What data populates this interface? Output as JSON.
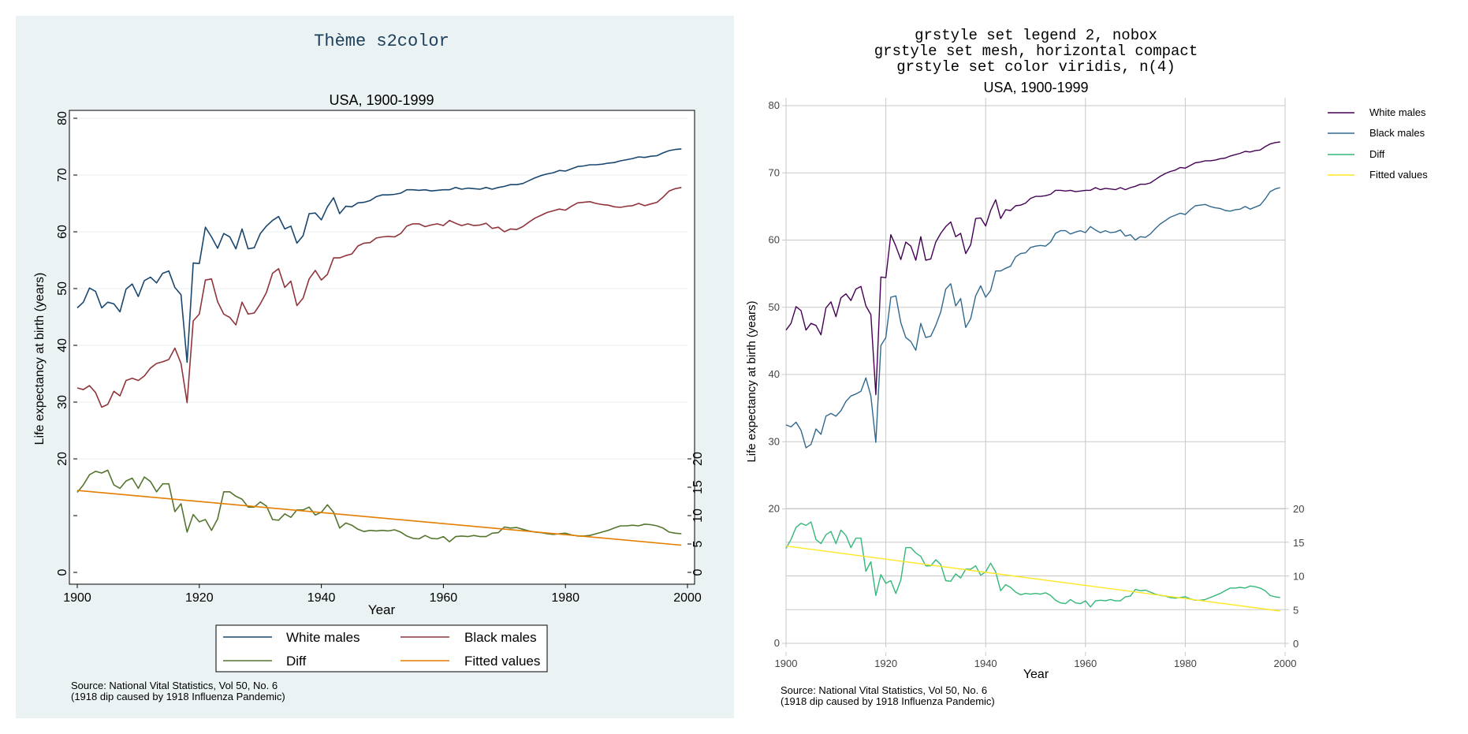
{
  "colors": {
    "s2_bg": "#eaf2f3",
    "s2_plot": "#ffffff",
    "s2_title": "#1e3f5a",
    "s2_white": "#1a476f",
    "s2_black": "#90353b",
    "s2_diff": "#55752f",
    "s2_fit": "#e37e00",
    "vir_white": "#440154",
    "vir_black": "#31688e",
    "vir_diff": "#35b779",
    "vir_fit": "#fde725",
    "grid": "#eaf2f3",
    "mesh": "#c8c8c8"
  },
  "left_panel": {
    "header": "Thème s2color",
    "legend": [
      "White males",
      "Black males",
      "Diff",
      "Fitted values"
    ],
    "source_line1": "Source: National Vital Statistics, Vol 50, No. 6",
    "source_line2": "(1918 dip caused by 1918 Influenza Pandemic)"
  },
  "right_panel": {
    "header_line1": "grstyle set legend 2, nobox",
    "header_line2": "grstyle set mesh, horizontal compact",
    "header_line3": "grstyle set color  viridis, n(4)",
    "legend": [
      "White males",
      "Black males",
      "Diff",
      "Fitted values"
    ],
    "source_line1": "Source: National Vital Statistics, Vol 50, No. 6",
    "source_line2": "(1918 dip caused by 1918 Influenza Pandemic)"
  },
  "chart_data": [
    {
      "type": "line",
      "title": "USA, 1900-1999",
      "xlabel": "Year",
      "ylabel": "Life expectancy at birth (years)",
      "xlim": [
        1900,
        2000
      ],
      "xticks": [
        1900,
        1920,
        1940,
        1960,
        1980,
        2000
      ],
      "ylim": [
        0,
        80
      ],
      "yticks_left": [
        0,
        10,
        20,
        30,
        40,
        50,
        60,
        70,
        80
      ],
      "ytick_labels_left": [
        "0",
        "",
        "20",
        "30",
        "40",
        "50",
        "60",
        "70",
        "80"
      ],
      "yticks_right": [
        0,
        5,
        10,
        15,
        20
      ],
      "legend_position": "bottom",
      "series": [
        {
          "name": "White males",
          "axis": "left",
          "values": [
            46.6,
            47.6,
            50.1,
            49.5,
            46.6,
            47.6,
            47.3,
            45.9,
            49.9,
            50.8,
            48.6,
            51.4,
            52.0,
            51.0,
            52.7,
            53.1,
            50.2,
            48.9,
            37.0,
            54.5,
            54.4,
            60.8,
            59.1,
            57.1,
            59.7,
            59.1,
            57.0,
            60.5,
            57.0,
            57.2,
            59.7,
            61.0,
            62.0,
            62.7,
            60.5,
            61.0,
            58.0,
            59.3,
            63.2,
            63.3,
            62.1,
            64.4,
            66.0,
            63.2,
            64.5,
            64.4,
            65.1,
            65.2,
            65.5,
            66.2,
            66.5,
            66.5,
            66.6,
            66.8,
            67.4,
            67.4,
            67.3,
            67.4,
            67.2,
            67.3,
            67.4,
            67.4,
            67.8,
            67.5,
            67.7,
            67.6,
            67.5,
            67.8,
            67.5,
            67.8,
            68.0,
            68.3,
            68.3,
            68.5,
            69.0,
            69.5,
            69.9,
            70.2,
            70.4,
            70.8,
            70.7,
            71.1,
            71.5,
            71.6,
            71.8,
            71.8,
            71.9,
            72.1,
            72.2,
            72.5,
            72.7,
            72.9,
            73.2,
            73.1,
            73.3,
            73.4,
            73.9,
            74.3,
            74.5,
            74.6
          ]
        },
        {
          "name": "Black males",
          "axis": "left",
          "values": [
            32.5,
            32.2,
            32.9,
            31.7,
            29.1,
            29.6,
            31.9,
            31.1,
            33.8,
            34.2,
            33.8,
            34.6,
            36.0,
            36.8,
            37.1,
            37.5,
            39.5,
            36.8,
            29.9,
            44.3,
            45.5,
            51.5,
            51.7,
            47.7,
            45.5,
            44.9,
            43.6,
            47.6,
            45.5,
            45.7,
            47.3,
            49.3,
            52.7,
            53.5,
            50.2,
            51.3,
            47.0,
            48.3,
            51.7,
            53.2,
            51.5,
            52.5,
            55.4,
            55.4,
            55.8,
            56.1,
            57.5,
            58.0,
            58.1,
            58.9,
            59.1,
            59.2,
            59.1,
            59.7,
            61.0,
            61.4,
            61.4,
            60.9,
            61.2,
            61.4,
            61.1,
            62.0,
            61.5,
            61.1,
            61.4,
            61.1,
            61.2,
            61.5,
            60.6,
            60.8,
            60.0,
            60.5,
            60.4,
            60.9,
            61.7,
            62.4,
            62.9,
            63.4,
            63.7,
            64.0,
            63.8,
            64.5,
            65.1,
            65.2,
            65.3,
            65.0,
            64.8,
            64.7,
            64.4,
            64.3,
            64.5,
            64.6,
            65.0,
            64.6,
            64.9,
            65.2,
            66.1,
            67.2,
            67.6,
            67.8
          ]
        },
        {
          "name": "Diff",
          "axis": "right",
          "values": [
            14.1,
            15.4,
            17.2,
            17.8,
            17.5,
            18.0,
            15.4,
            14.8,
            16.1,
            16.6,
            14.8,
            16.8,
            16.0,
            14.2,
            15.6,
            15.6,
            10.7,
            12.1,
            7.1,
            10.2,
            8.9,
            9.3,
            7.4,
            9.4,
            14.2,
            14.2,
            13.4,
            12.9,
            11.5,
            11.5,
            12.4,
            11.7,
            9.3,
            9.2,
            10.3,
            9.7,
            11.0,
            11.0,
            11.5,
            10.1,
            10.6,
            11.9,
            10.6,
            7.8,
            8.7,
            8.3,
            7.6,
            7.2,
            7.4,
            7.3,
            7.4,
            7.3,
            7.5,
            7.1,
            6.4,
            6.0,
            5.9,
            6.5,
            6.0,
            5.9,
            6.3,
            5.4,
            6.3,
            6.4,
            6.3,
            6.5,
            6.3,
            6.3,
            6.9,
            7.0,
            8.0,
            7.8,
            7.9,
            7.6,
            7.3,
            7.1,
            7.0,
            6.8,
            6.7,
            6.8,
            6.9,
            6.6,
            6.4,
            6.4,
            6.5,
            6.8,
            7.1,
            7.4,
            7.8,
            8.2,
            8.2,
            8.3,
            8.2,
            8.5,
            8.4,
            8.2,
            7.8,
            7.1,
            6.9,
            6.8
          ]
        },
        {
          "name": "Fitted values",
          "axis": "right",
          "values": [
            14.43,
            4.79
          ]
        }
      ]
    },
    {
      "type": "line",
      "title": "USA, 1900-1999",
      "xlabel": "Year",
      "ylabel": "Life expectancy at birth (years)",
      "xlim": [
        1900,
        2000
      ],
      "xticks": [
        1900,
        1920,
        1940,
        1960,
        1980,
        2000
      ],
      "ylim": [
        0,
        80
      ],
      "yticks_left": [
        0,
        20,
        30,
        40,
        50,
        60,
        70,
        80
      ],
      "yticks_right": [
        0,
        5,
        10,
        15,
        20
      ],
      "grid": true,
      "legend_position": "right",
      "series_note": "same series as first chart"
    }
  ]
}
